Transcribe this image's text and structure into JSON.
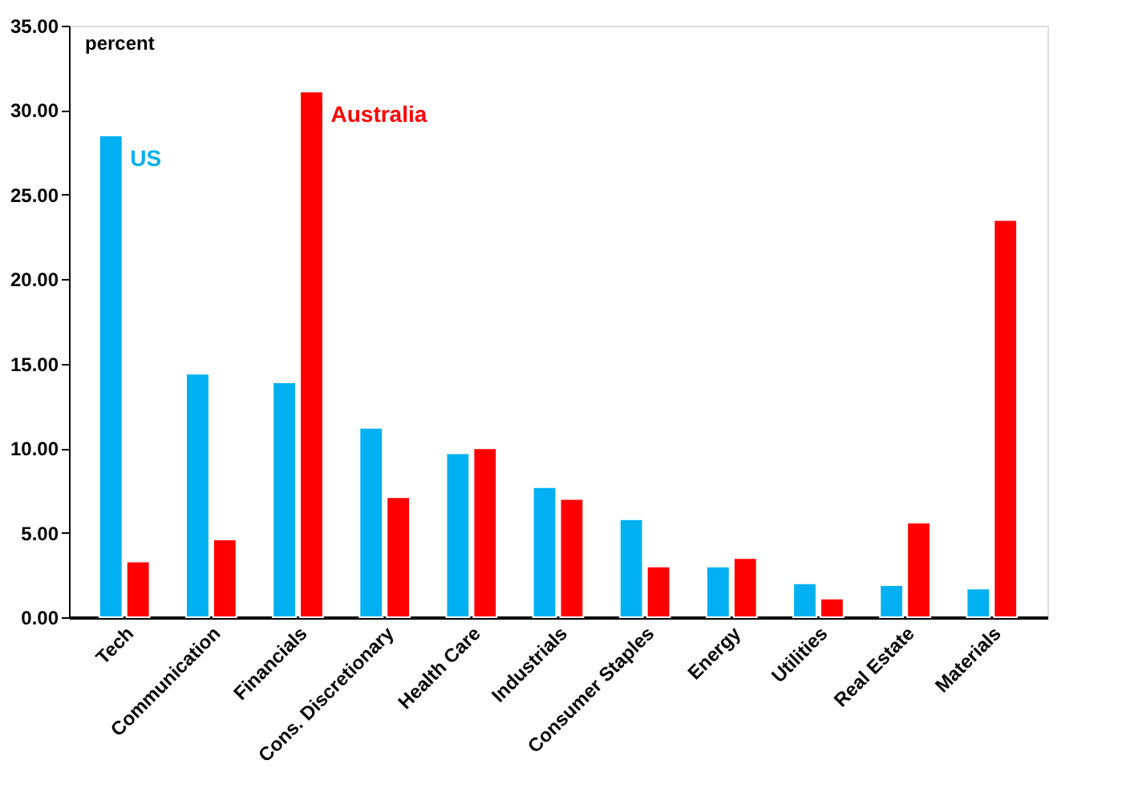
{
  "chart_data": {
    "type": "bar",
    "ylabel": "percent",
    "categories": [
      "Tech",
      "Communication",
      "Financials",
      "Cons. Discretionary",
      "Health Care",
      "Industrials",
      "Consumer Staples",
      "Energy",
      "Utilities",
      "Real Estate",
      "Materials"
    ],
    "series": [
      {
        "name": "US",
        "color": "#00b0f0",
        "values": [
          28.5,
          14.4,
          13.9,
          11.2,
          9.7,
          7.7,
          5.8,
          3.0,
          2.0,
          1.9,
          1.7
        ]
      },
      {
        "name": "Australia",
        "color": "#ff0000",
        "values": [
          3.3,
          4.6,
          31.1,
          7.1,
          10.0,
          7.0,
          3.0,
          3.5,
          1.1,
          5.6,
          23.5
        ]
      }
    ],
    "ylim": [
      0,
      35
    ],
    "yticks": [
      {
        "value": 0,
        "label": "0.00"
      },
      {
        "value": 5,
        "label": "5.00"
      },
      {
        "value": 10,
        "label": "10.00"
      },
      {
        "value": 15,
        "label": "15.00"
      },
      {
        "value": 20,
        "label": "20.00"
      },
      {
        "value": 25,
        "label": "25.00"
      },
      {
        "value": 30,
        "label": "30.00"
      },
      {
        "value": 35,
        "label": "35.00"
      }
    ],
    "grid": false,
    "legend": false
  }
}
